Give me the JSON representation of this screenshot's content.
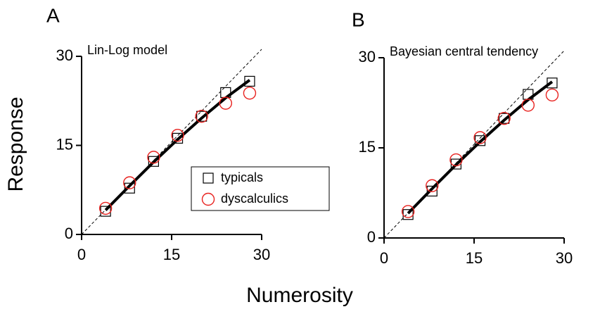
{
  "chart_data": [
    {
      "type": "scatter",
      "title": "A",
      "annotation": "Lin-Log model",
      "x": [
        4,
        8,
        12,
        16,
        20,
        24,
        28
      ],
      "series": [
        {
          "name": "typicals",
          "color": "#000000",
          "marker": "square",
          "values": [
            3.9,
            7.8,
            12.3,
            16.2,
            19.9,
            23.9,
            25.8
          ]
        },
        {
          "name": "dyscalculics",
          "color": "#e8221f",
          "marker": "circle",
          "values": [
            4.4,
            8.7,
            13.0,
            16.7,
            19.9,
            22.1,
            23.8
          ]
        },
        {
          "color": "#000000",
          "marker": "line",
          "values": [
            4.1,
            8.2,
            12.2,
            16.0,
            19.6,
            23.0,
            26.0
          ]
        }
      ],
      "xlim": [
        0,
        30
      ],
      "ylim": [
        0,
        30
      ],
      "xticks": [
        0,
        15,
        30
      ],
      "yticks": [
        0,
        15,
        30
      ],
      "legend": "lower right"
    },
    {
      "type": "scatter",
      "title": "B",
      "annotation": "Bayesian central tendency",
      "x": [
        4,
        8,
        12,
        16,
        20,
        24,
        28
      ],
      "series": [
        {
          "color": "#000000",
          "marker": "square",
          "values": [
            3.9,
            7.8,
            12.3,
            16.2,
            19.9,
            23.9,
            25.8
          ]
        },
        {
          "color": "#e8221f",
          "marker": "circle",
          "values": [
            4.4,
            8.7,
            13.0,
            16.7,
            19.9,
            22.1,
            23.8
          ]
        },
        {
          "color": "#000000",
          "marker": "line",
          "values": [
            4.1,
            8.2,
            12.2,
            16.0,
            19.6,
            23.0,
            26.0
          ]
        }
      ],
      "xlim": [
        0,
        30
      ],
      "ylim": [
        0,
        30
      ],
      "xticks": [
        0,
        15,
        30
      ],
      "yticks": [
        0,
        15,
        30
      ]
    }
  ],
  "axis_labels": {
    "x": "Numerosity",
    "y": "Response"
  }
}
